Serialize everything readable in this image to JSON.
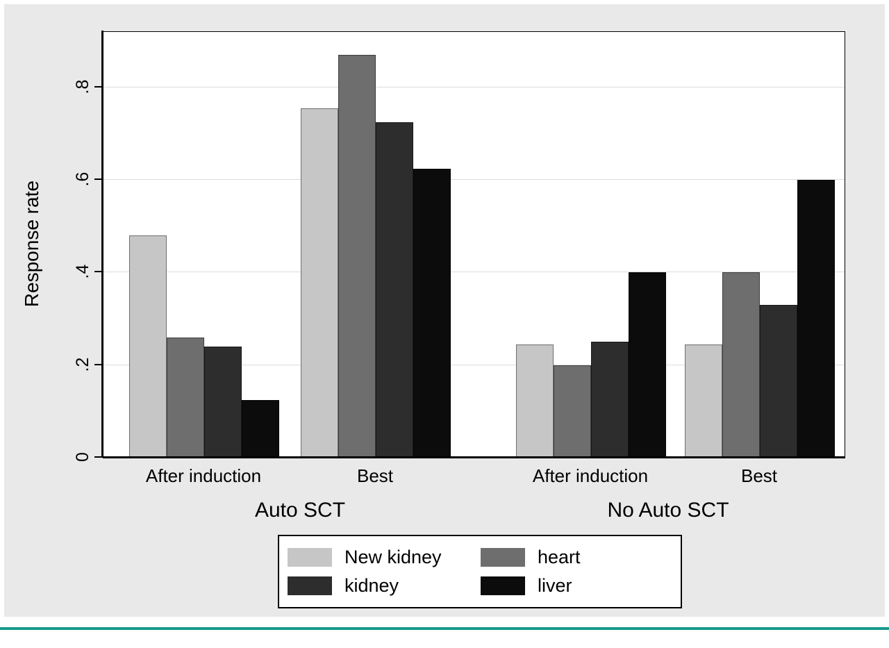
{
  "figure": {
    "panel_background": "#e9e9e9",
    "plot_background": "#ffffff",
    "gridline_color": "#dcdcdc",
    "accent_rule_color": "#189a8d"
  },
  "chart_data": {
    "type": "bar",
    "title": "",
    "ylabel": "Response rate",
    "xlabel": "",
    "ylim": [
      0,
      0.92
    ],
    "yticks": [
      0,
      0.2,
      0.4,
      0.6,
      0.8
    ],
    "ytick_labels": [
      "0",
      ".2",
      ".4",
      ".6",
      ".8"
    ],
    "grid": true,
    "group_labels": [
      "Auto SCT",
      "No Auto SCT"
    ],
    "categories": [
      "After induction",
      "Best",
      "After induction",
      "Best"
    ],
    "series": [
      {
        "name": "New kidney",
        "color": "#c6c6c6",
        "values": [
          0.48,
          0.755,
          0.245,
          0.245
        ]
      },
      {
        "name": "heart",
        "color": "#6e6e6e",
        "values": [
          0.26,
          0.87,
          0.2,
          0.4
        ]
      },
      {
        "name": "kidney",
        "color": "#2d2d2d",
        "values": [
          0.24,
          0.725,
          0.25,
          0.33
        ]
      },
      {
        "name": "liver",
        "color": "#0c0c0c",
        "values": [
          0.125,
          0.625,
          0.4,
          0.6
        ]
      }
    ],
    "legend": {
      "position": "bottom",
      "entries": [
        "New kidney",
        "heart",
        "kidney",
        "liver"
      ]
    }
  }
}
